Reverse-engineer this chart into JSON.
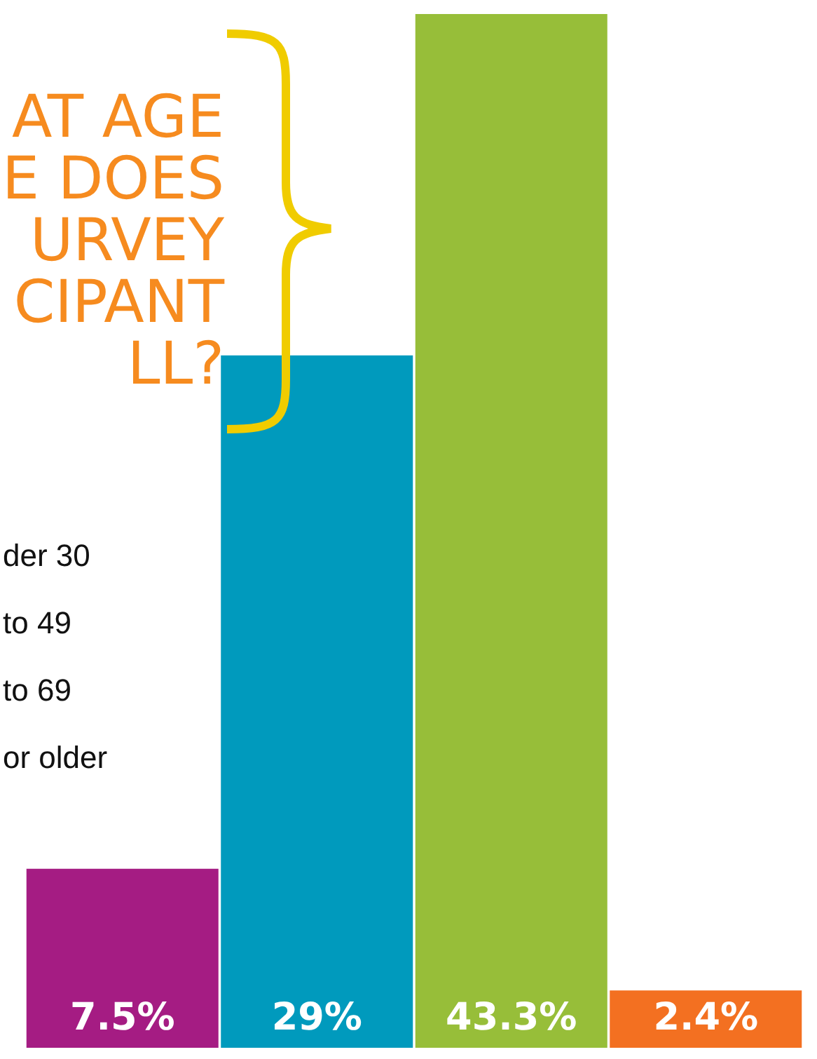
{
  "chart_data": {
    "type": "bar",
    "title": "AT AGE\nE DOES\nURVEY\nCIPANT\nLL?",
    "categories": [
      null,
      null,
      null,
      null
    ],
    "values": [
      7.5,
      29,
      43.3,
      2.4
    ],
    "colors": [
      "#a51c83",
      "#009abd",
      "#97be39",
      "#f37021"
    ],
    "value_labels": [
      "7.5%",
      "29%",
      "43.3%",
      "2.4%"
    ],
    "annotations": [
      "der 30",
      "to 49",
      "to 69",
      "or older"
    ]
  }
}
